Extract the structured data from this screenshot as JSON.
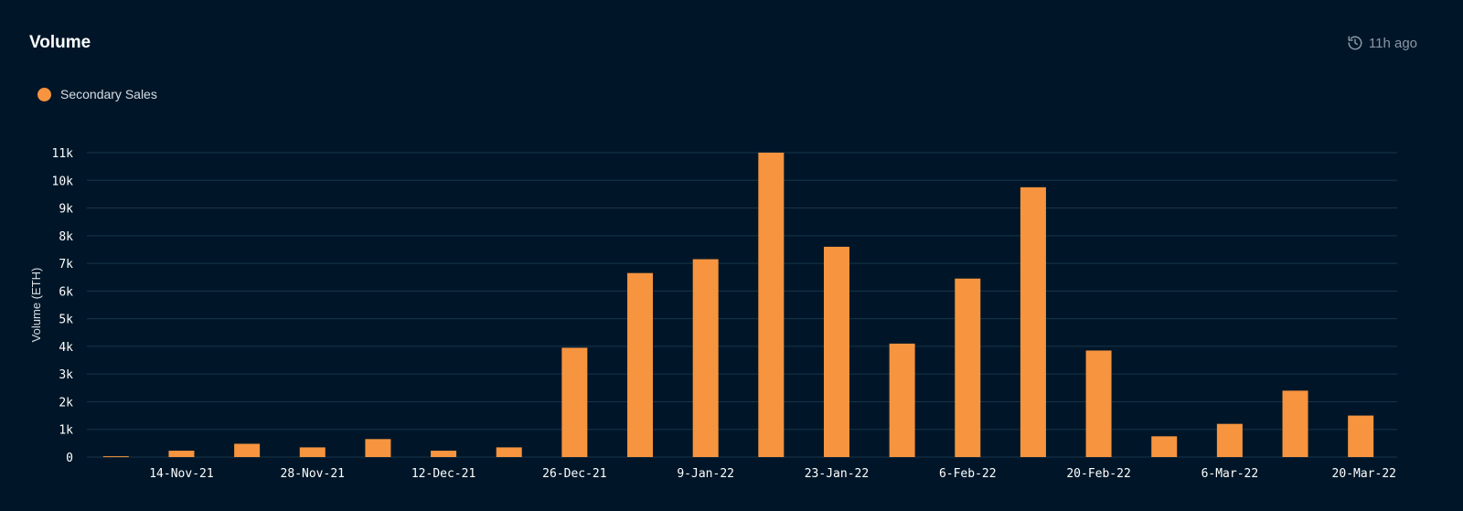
{
  "header": {
    "title": "Volume",
    "updated": "11h ago",
    "clock_icon": "history-icon"
  },
  "colors": {
    "background": "#001628",
    "bar": "#f6943f",
    "grid": "#17344a"
  },
  "chart_data": {
    "type": "bar",
    "title": "Volume",
    "ylabel": "Volume (ETH)",
    "xlabel": "",
    "ylim": [
      0,
      11000
    ],
    "yticks": [
      0,
      1000,
      2000,
      3000,
      4000,
      5000,
      6000,
      7000,
      8000,
      9000,
      10000,
      11000
    ],
    "ytick_labels": [
      "0",
      "1k",
      "2k",
      "3k",
      "4k",
      "5k",
      "6k",
      "7k",
      "8k",
      "9k",
      "10k",
      "11k"
    ],
    "xtick_labels": [
      "14-Nov-21",
      "28-Nov-21",
      "12-Dec-21",
      "26-Dec-21",
      "9-Jan-22",
      "23-Jan-22",
      "6-Feb-22",
      "20-Feb-22",
      "6-Mar-22",
      "20-Mar-22"
    ],
    "grid": true,
    "legend_position": "top-left",
    "categories": [
      "2021-11-07",
      "2021-11-14",
      "2021-11-21",
      "2021-11-28",
      "2021-12-05",
      "2021-12-12",
      "2021-12-19",
      "2021-12-26",
      "2022-01-02",
      "2022-01-09",
      "2022-01-16",
      "2022-01-23",
      "2022-01-30",
      "2022-02-06",
      "2022-02-13",
      "2022-02-20",
      "2022-02-27",
      "2022-03-06",
      "2022-03-13",
      "2022-03-20"
    ],
    "series": [
      {
        "name": "Secondary Sales",
        "values": [
          30,
          230,
          480,
          350,
          650,
          230,
          350,
          3950,
          6650,
          7150,
          11000,
          7600,
          4100,
          6450,
          9750,
          3850,
          750,
          1200,
          2400,
          1500
        ]
      }
    ]
  }
}
